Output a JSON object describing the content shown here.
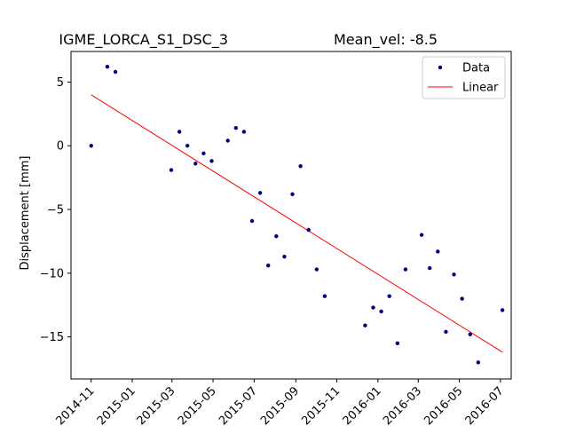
{
  "chart_data": {
    "type": "scatter",
    "title": "IGME_LORCA_S1_DSC_3",
    "subtitle": "Mean_vel: -8.5",
    "xlabel": "",
    "ylabel": "Displacement [mm]",
    "xlim": [
      "2014-10-02",
      "2016-07-17"
    ],
    "ylim": [
      -18.3,
      7.4
    ],
    "x_ticks": [
      "2014-11",
      "2015-01",
      "2015-03",
      "2015-05",
      "2015-07",
      "2015-09",
      "2015-11",
      "2016-01",
      "2016-03",
      "2016-05",
      "2016-07"
    ],
    "y_ticks": [
      5,
      0,
      -5,
      -10,
      -15
    ],
    "grid": false,
    "legend_position": "top-right",
    "colors": {
      "data": "#000080",
      "linear": "#ff0000"
    },
    "series": [
      {
        "name": "Data",
        "kind": "scatter",
        "points": [
          {
            "x": "2014-11-01",
            "y": 0.0
          },
          {
            "x": "2014-11-25",
            "y": 6.2
          },
          {
            "x": "2014-12-07",
            "y": 5.8
          },
          {
            "x": "2015-02-28",
            "y": -1.9
          },
          {
            "x": "2015-03-12",
            "y": 1.1
          },
          {
            "x": "2015-03-24",
            "y": 0.0
          },
          {
            "x": "2015-04-05",
            "y": -1.4
          },
          {
            "x": "2015-04-17",
            "y": -0.6
          },
          {
            "x": "2015-04-29",
            "y": -1.2
          },
          {
            "x": "2015-05-23",
            "y": 0.4
          },
          {
            "x": "2015-06-04",
            "y": 1.4
          },
          {
            "x": "2015-06-16",
            "y": 1.1
          },
          {
            "x": "2015-06-28",
            "y": -5.9
          },
          {
            "x": "2015-07-10",
            "y": -3.7
          },
          {
            "x": "2015-07-22",
            "y": -9.4
          },
          {
            "x": "2015-08-03",
            "y": -7.1
          },
          {
            "x": "2015-08-15",
            "y": -8.7
          },
          {
            "x": "2015-08-27",
            "y": -3.8
          },
          {
            "x": "2015-09-08",
            "y": -1.6
          },
          {
            "x": "2015-09-20",
            "y": -6.6
          },
          {
            "x": "2015-10-02",
            "y": -9.7
          },
          {
            "x": "2015-10-14",
            "y": -11.8
          },
          {
            "x": "2015-12-13",
            "y": -14.1
          },
          {
            "x": "2015-12-25",
            "y": -12.7
          },
          {
            "x": "2016-01-06",
            "y": -13.0
          },
          {
            "x": "2016-01-18",
            "y": -11.8
          },
          {
            "x": "2016-01-30",
            "y": -15.5
          },
          {
            "x": "2016-02-11",
            "y": -9.7
          },
          {
            "x": "2016-03-06",
            "y": -7.0
          },
          {
            "x": "2016-03-18",
            "y": -9.6
          },
          {
            "x": "2016-03-30",
            "y": -8.3
          },
          {
            "x": "2016-04-11",
            "y": -14.6
          },
          {
            "x": "2016-04-23",
            "y": -10.1
          },
          {
            "x": "2016-05-05",
            "y": -12.0
          },
          {
            "x": "2016-05-17",
            "y": -14.8
          },
          {
            "x": "2016-05-29",
            "y": -17.0
          },
          {
            "x": "2016-07-04",
            "y": -12.9
          }
        ]
      },
      {
        "name": "Linear",
        "kind": "line",
        "points": [
          {
            "x": "2014-11-01",
            "y": 4.0
          },
          {
            "x": "2016-07-04",
            "y": -16.2
          }
        ]
      }
    ]
  }
}
